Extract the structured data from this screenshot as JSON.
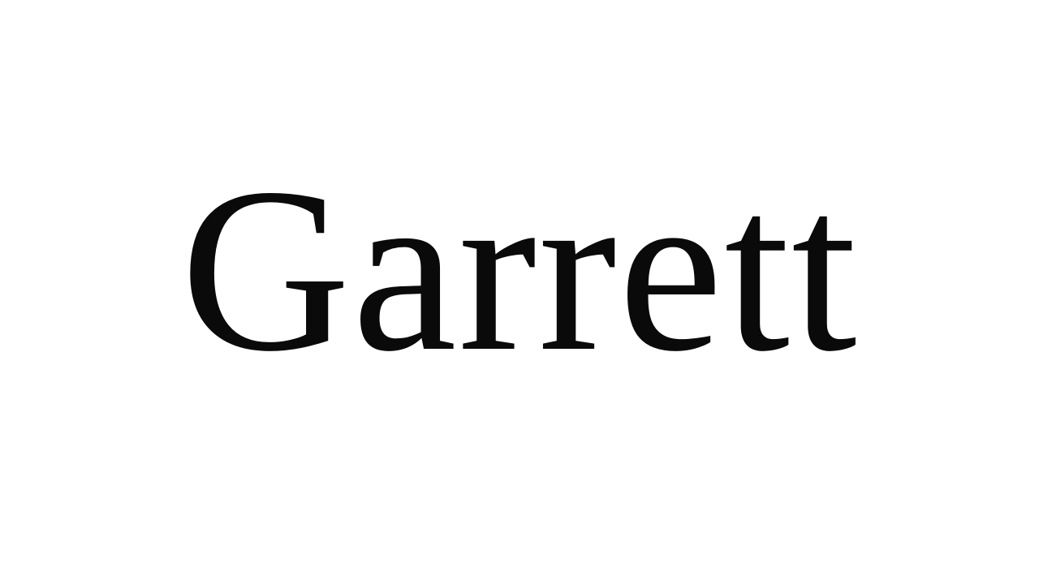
{
  "word": {
    "text": "Garrett",
    "text_color": "#0a0a0a",
    "background_color": "#ffffff"
  }
}
